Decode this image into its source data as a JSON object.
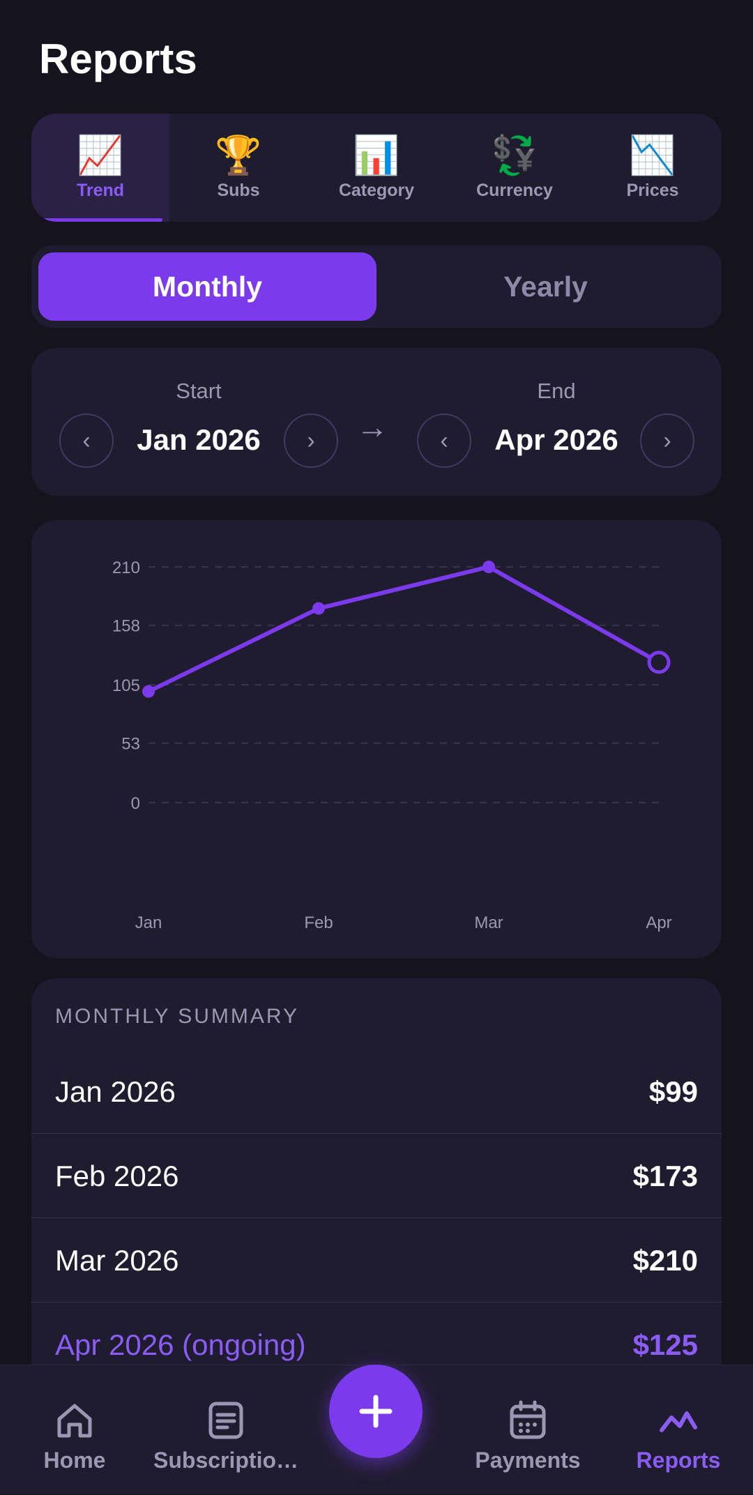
{
  "header": {
    "title": "Reports"
  },
  "tabs": [
    {
      "label": "Trend",
      "icon": "📈",
      "icon_name": "trend-chart-icon",
      "active": true
    },
    {
      "label": "Subs",
      "icon": "🏆",
      "icon_name": "trophy-icon",
      "active": false
    },
    {
      "label": "Category",
      "icon": "📊",
      "icon_name": "bar-chart-icon",
      "active": false
    },
    {
      "label": "Currency",
      "icon": "💱",
      "icon_name": "currency-exchange-icon",
      "active": false
    },
    {
      "label": "Prices",
      "icon": "📉",
      "icon_name": "down-trend-chart-icon",
      "active": false
    }
  ],
  "period_toggle": {
    "monthly": "Monthly",
    "yearly": "Yearly",
    "selected": "monthly"
  },
  "range": {
    "start_label": "Start",
    "start_value": "Jan 2026",
    "end_label": "End",
    "end_value": "Apr 2026",
    "prev_glyph": "‹",
    "next_glyph": "›",
    "arrow_glyph": "→"
  },
  "chart_data": {
    "type": "line",
    "categories": [
      "Jan",
      "Feb",
      "Mar",
      "Apr"
    ],
    "values": [
      99,
      173,
      210,
      125
    ],
    "y_ticks": [
      210,
      158,
      105,
      53,
      0
    ],
    "ylim": [
      0,
      210
    ],
    "grid": true,
    "last_point_open": true,
    "line_color": "#7c3aed"
  },
  "summary": {
    "heading": "MONTHLY SUMMARY",
    "rows": [
      {
        "label": "Jan 2026",
        "value": "$99"
      },
      {
        "label": "Feb 2026",
        "value": "$173"
      },
      {
        "label": "Mar 2026",
        "value": "$210"
      },
      {
        "label": "Apr 2026 (ongoing)",
        "value": "$125"
      }
    ]
  },
  "bottom_nav": {
    "items": [
      {
        "label": "Home",
        "active": false
      },
      {
        "label": "Subscriptio…",
        "active": false
      },
      {
        "label": "Payments",
        "active": false
      },
      {
        "label": "Reports",
        "active": true
      }
    ],
    "fab_glyph": "+"
  },
  "colors": {
    "accent": "#7c3aed",
    "background": "#15131d",
    "card": "#1f1c2f",
    "muted": "#9d97b3"
  }
}
